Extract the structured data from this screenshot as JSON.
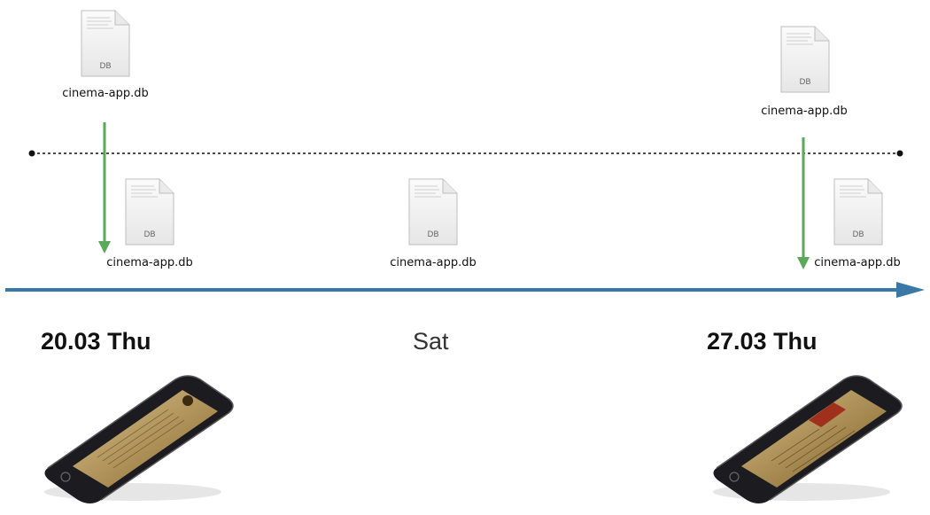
{
  "files": {
    "server_old": {
      "name": "cinema-app.db",
      "ext": "DB"
    },
    "server_new": {
      "name": "cinema-app.db",
      "ext": "DB"
    },
    "local_thu": {
      "name": "cinema-app.db",
      "ext": "DB"
    },
    "local_sat": {
      "name": "cinema-app.db",
      "ext": "DB"
    },
    "local_nextthu": {
      "name": "cinema-app.db",
      "ext": "DB"
    }
  },
  "timeline": {
    "start_label": "20.03 Thu",
    "mid_label": "Sat",
    "end_label": "27.03 Thu"
  },
  "colors": {
    "sync_arrow": "#5aa85a",
    "timeline": "#3a78a8",
    "separator": "#111111"
  },
  "devices": {
    "left": "phone-icon",
    "right": "phone-icon"
  }
}
